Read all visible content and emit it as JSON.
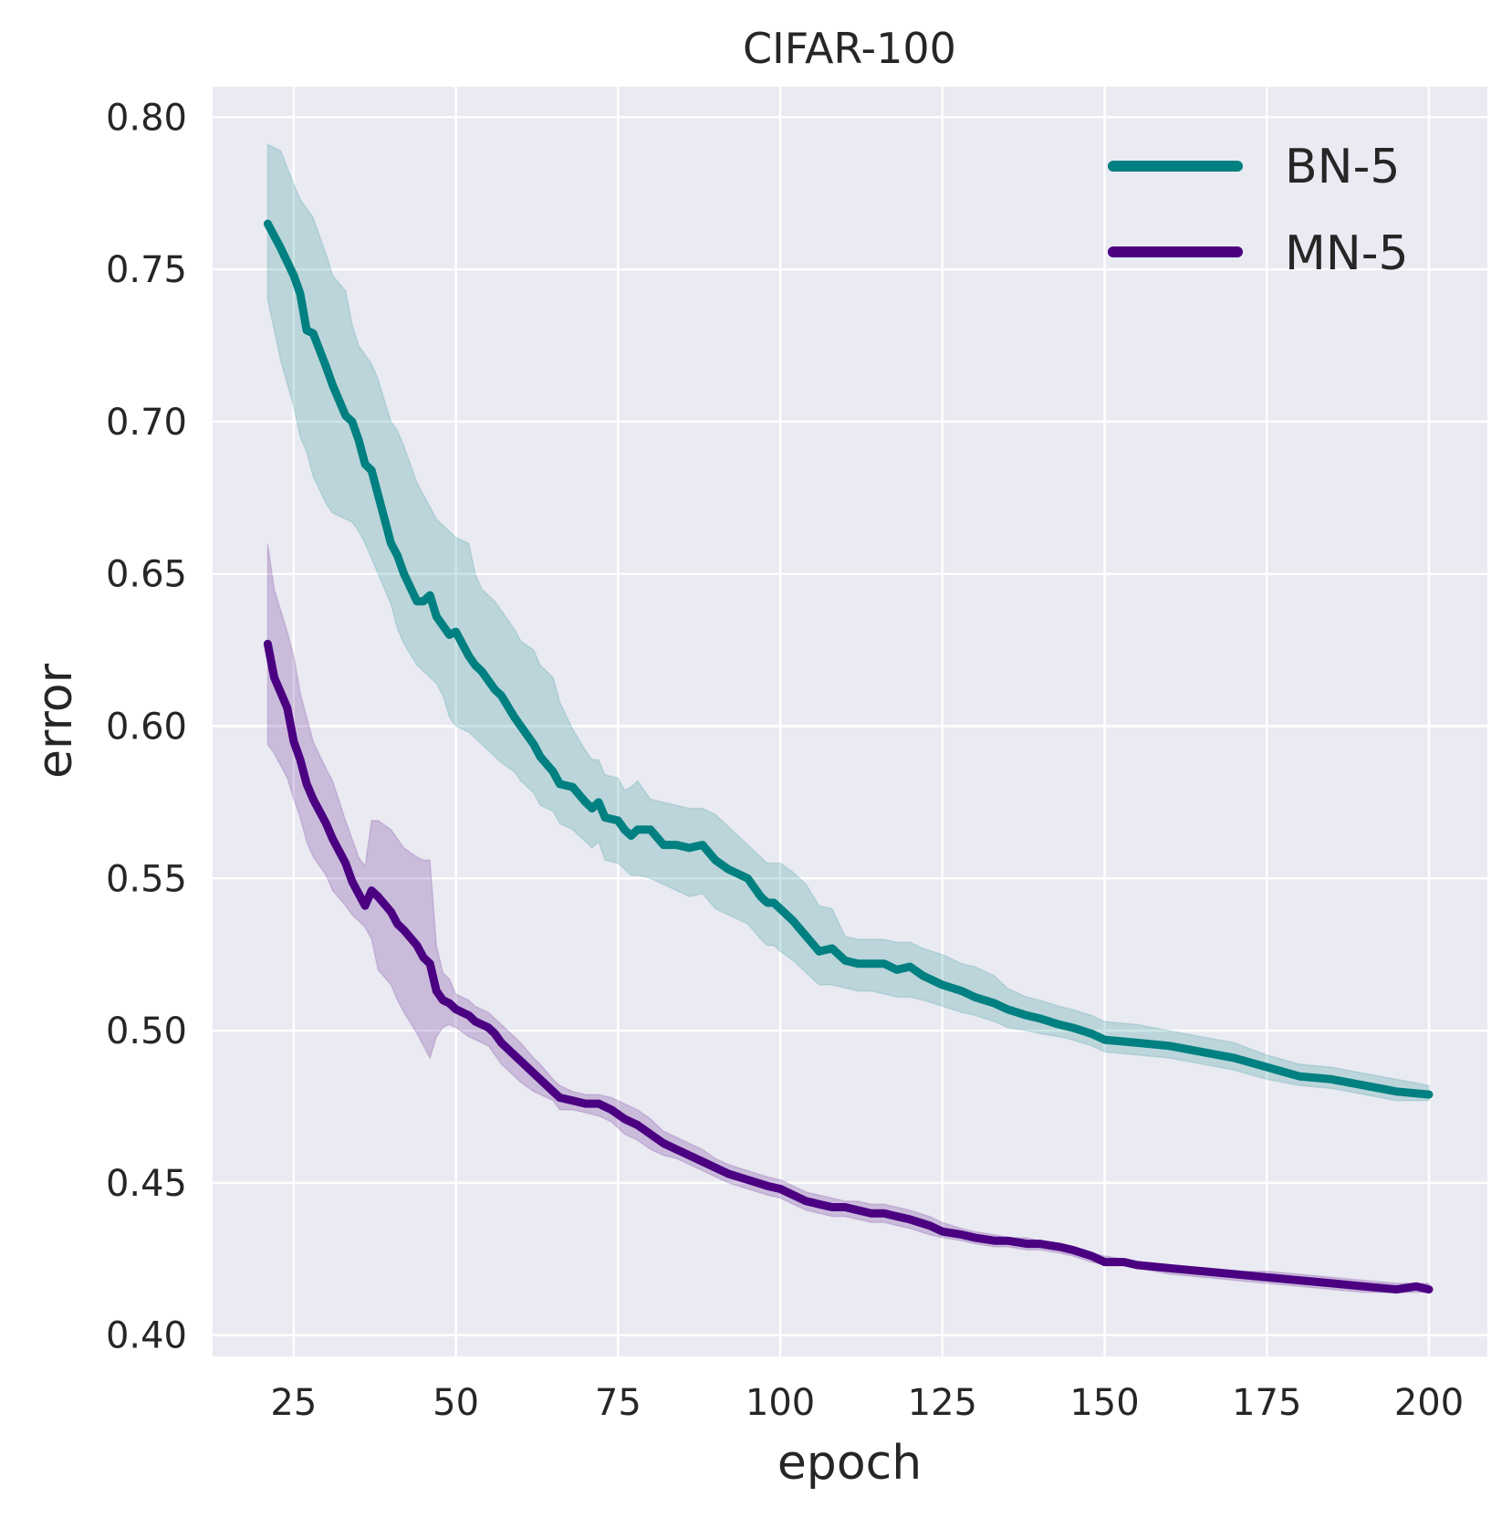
{
  "chart_data": {
    "type": "line",
    "title": "CIFAR-100",
    "xlabel": "epoch",
    "ylabel": "error",
    "xlim": [
      12.5,
      209
    ],
    "ylim": [
      0.393,
      0.81
    ],
    "xticks": [
      25,
      50,
      75,
      100,
      125,
      150,
      175,
      200
    ],
    "xtick_labels": [
      "25",
      "50",
      "75",
      "100",
      "125",
      "150",
      "175",
      "200"
    ],
    "yticks": [
      0.4,
      0.45,
      0.5,
      0.55,
      0.6,
      0.65,
      0.7,
      0.75,
      0.8
    ],
    "ytick_labels": [
      "0.40",
      "0.45",
      "0.50",
      "0.55",
      "0.60",
      "0.65",
      "0.70",
      "0.75",
      "0.80"
    ],
    "grid": true,
    "legend": "top-right",
    "series": [
      {
        "name": "BN-5",
        "color": "#008080",
        "x": [
          21,
          23,
          25,
          26,
          27,
          28,
          30,
          31,
          33,
          34,
          35,
          36,
          37,
          38,
          39,
          40,
          41,
          42,
          44,
          45,
          46,
          47,
          48,
          49,
          50,
          52,
          53,
          54,
          56,
          57,
          59,
          60,
          62,
          63,
          65,
          66,
          68,
          70,
          71,
          72,
          73,
          75,
          76,
          77,
          78,
          80,
          82,
          84,
          86,
          88,
          90,
          92,
          95,
          97,
          98,
          99,
          100,
          102,
          104,
          106,
          108,
          110,
          112,
          114,
          116,
          118,
          120,
          122,
          125,
          128,
          130,
          133,
          135,
          138,
          140,
          143,
          145,
          148,
          150,
          155,
          160,
          165,
          170,
          175,
          180,
          185,
          190,
          195,
          200
        ],
        "y": [
          0.765,
          0.757,
          0.748,
          0.742,
          0.73,
          0.729,
          0.718,
          0.712,
          0.702,
          0.7,
          0.694,
          0.686,
          0.684,
          0.676,
          0.668,
          0.66,
          0.656,
          0.65,
          0.641,
          0.641,
          0.643,
          0.636,
          0.633,
          0.63,
          0.631,
          0.623,
          0.62,
          0.618,
          0.612,
          0.61,
          0.603,
          0.6,
          0.594,
          0.59,
          0.585,
          0.581,
          0.58,
          0.575,
          0.573,
          0.575,
          0.57,
          0.569,
          0.566,
          0.564,
          0.566,
          0.566,
          0.561,
          0.561,
          0.56,
          0.561,
          0.556,
          0.553,
          0.55,
          0.544,
          0.542,
          0.542,
          0.54,
          0.536,
          0.531,
          0.526,
          0.527,
          0.523,
          0.522,
          0.522,
          0.522,
          0.52,
          0.521,
          0.518,
          0.515,
          0.513,
          0.511,
          0.509,
          0.507,
          0.505,
          0.504,
          0.502,
          0.501,
          0.499,
          0.497,
          0.496,
          0.495,
          0.493,
          0.491,
          0.488,
          0.485,
          0.484,
          0.482,
          0.48,
          0.479
        ],
        "lower": [
          0.74,
          0.72,
          0.705,
          0.695,
          0.69,
          0.682,
          0.673,
          0.67,
          0.668,
          0.667,
          0.664,
          0.66,
          0.655,
          0.65,
          0.645,
          0.64,
          0.632,
          0.627,
          0.62,
          0.618,
          0.616,
          0.614,
          0.61,
          0.603,
          0.6,
          0.598,
          0.596,
          0.594,
          0.59,
          0.588,
          0.585,
          0.582,
          0.578,
          0.574,
          0.572,
          0.568,
          0.566,
          0.562,
          0.56,
          0.562,
          0.556,
          0.555,
          0.553,
          0.551,
          0.551,
          0.55,
          0.548,
          0.546,
          0.544,
          0.545,
          0.54,
          0.538,
          0.535,
          0.53,
          0.528,
          0.528,
          0.526,
          0.523,
          0.519,
          0.515,
          0.515,
          0.514,
          0.513,
          0.513,
          0.512,
          0.511,
          0.511,
          0.51,
          0.508,
          0.506,
          0.505,
          0.503,
          0.501,
          0.5,
          0.499,
          0.498,
          0.497,
          0.495,
          0.493,
          0.492,
          0.491,
          0.489,
          0.487,
          0.484,
          0.482,
          0.481,
          0.479,
          0.477,
          0.477
        ],
        "upper": [
          0.791,
          0.789,
          0.778,
          0.773,
          0.77,
          0.767,
          0.755,
          0.748,
          0.743,
          0.732,
          0.725,
          0.722,
          0.719,
          0.714,
          0.707,
          0.7,
          0.697,
          0.692,
          0.68,
          0.676,
          0.672,
          0.668,
          0.666,
          0.664,
          0.662,
          0.66,
          0.65,
          0.645,
          0.641,
          0.638,
          0.632,
          0.628,
          0.625,
          0.62,
          0.616,
          0.608,
          0.599,
          0.592,
          0.589,
          0.589,
          0.584,
          0.583,
          0.579,
          0.58,
          0.582,
          0.576,
          0.575,
          0.574,
          0.573,
          0.573,
          0.571,
          0.567,
          0.561,
          0.557,
          0.555,
          0.555,
          0.555,
          0.552,
          0.548,
          0.541,
          0.54,
          0.531,
          0.53,
          0.53,
          0.53,
          0.529,
          0.529,
          0.527,
          0.525,
          0.522,
          0.521,
          0.518,
          0.514,
          0.511,
          0.51,
          0.508,
          0.507,
          0.505,
          0.503,
          0.502,
          0.5,
          0.498,
          0.496,
          0.492,
          0.489,
          0.488,
          0.486,
          0.484,
          0.482
        ]
      },
      {
        "name": "MN-5",
        "color": "#4B0082",
        "x": [
          21,
          22,
          24,
          25,
          26,
          27,
          28,
          30,
          31,
          33,
          34,
          35,
          36,
          37,
          38,
          40,
          41,
          42,
          44,
          45,
          46,
          47,
          48,
          49,
          50,
          52,
          53,
          55,
          56,
          57,
          59,
          60,
          62,
          63,
          65,
          66,
          68,
          70,
          72,
          74,
          76,
          78,
          80,
          82,
          84,
          86,
          88,
          90,
          92,
          95,
          98,
          100,
          102,
          104,
          106,
          108,
          110,
          112,
          114,
          116,
          118,
          120,
          123,
          125,
          128,
          130,
          133,
          135,
          138,
          140,
          143,
          145,
          148,
          150,
          153,
          155,
          160,
          165,
          170,
          175,
          180,
          185,
          190,
          195,
          198,
          200
        ],
        "y": [
          0.627,
          0.616,
          0.606,
          0.595,
          0.589,
          0.581,
          0.576,
          0.568,
          0.563,
          0.555,
          0.549,
          0.545,
          0.541,
          0.546,
          0.544,
          0.539,
          0.535,
          0.533,
          0.528,
          0.524,
          0.522,
          0.513,
          0.51,
          0.509,
          0.507,
          0.505,
          0.503,
          0.501,
          0.499,
          0.496,
          0.492,
          0.49,
          0.486,
          0.484,
          0.48,
          0.478,
          0.477,
          0.476,
          0.476,
          0.474,
          0.471,
          0.469,
          0.466,
          0.463,
          0.461,
          0.459,
          0.457,
          0.455,
          0.453,
          0.451,
          0.449,
          0.448,
          0.446,
          0.444,
          0.443,
          0.442,
          0.442,
          0.441,
          0.44,
          0.44,
          0.439,
          0.438,
          0.436,
          0.434,
          0.433,
          0.432,
          0.431,
          0.431,
          0.43,
          0.43,
          0.429,
          0.428,
          0.426,
          0.424,
          0.424,
          0.423,
          0.422,
          0.421,
          0.42,
          0.419,
          0.418,
          0.417,
          0.416,
          0.415,
          0.416,
          0.415
        ],
        "lower": [
          0.594,
          0.591,
          0.583,
          0.576,
          0.57,
          0.562,
          0.557,
          0.551,
          0.546,
          0.541,
          0.538,
          0.536,
          0.534,
          0.53,
          0.52,
          0.515,
          0.51,
          0.506,
          0.499,
          0.495,
          0.491,
          0.498,
          0.501,
          0.502,
          0.501,
          0.498,
          0.497,
          0.495,
          0.492,
          0.489,
          0.485,
          0.483,
          0.48,
          0.479,
          0.477,
          0.474,
          0.474,
          0.473,
          0.472,
          0.47,
          0.466,
          0.464,
          0.461,
          0.459,
          0.458,
          0.456,
          0.454,
          0.452,
          0.45,
          0.448,
          0.446,
          0.445,
          0.443,
          0.441,
          0.44,
          0.439,
          0.439,
          0.438,
          0.437,
          0.437,
          0.436,
          0.435,
          0.433,
          0.432,
          0.431,
          0.43,
          0.429,
          0.429,
          0.428,
          0.428,
          0.427,
          0.426,
          0.424,
          0.423,
          0.423,
          0.422,
          0.42,
          0.419,
          0.418,
          0.417,
          0.416,
          0.415,
          0.414,
          0.414,
          0.414,
          0.414
        ],
        "upper": [
          0.66,
          0.645,
          0.631,
          0.623,
          0.611,
          0.603,
          0.595,
          0.586,
          0.582,
          0.569,
          0.563,
          0.557,
          0.554,
          0.569,
          0.569,
          0.566,
          0.563,
          0.56,
          0.557,
          0.556,
          0.556,
          0.528,
          0.519,
          0.517,
          0.512,
          0.51,
          0.508,
          0.506,
          0.504,
          0.502,
          0.498,
          0.496,
          0.491,
          0.489,
          0.484,
          0.482,
          0.48,
          0.479,
          0.479,
          0.478,
          0.476,
          0.474,
          0.471,
          0.467,
          0.465,
          0.463,
          0.461,
          0.458,
          0.456,
          0.454,
          0.452,
          0.451,
          0.449,
          0.447,
          0.446,
          0.445,
          0.444,
          0.444,
          0.443,
          0.443,
          0.442,
          0.441,
          0.439,
          0.437,
          0.435,
          0.434,
          0.433,
          0.432,
          0.432,
          0.431,
          0.43,
          0.429,
          0.427,
          0.426,
          0.425,
          0.424,
          0.423,
          0.422,
          0.421,
          0.421,
          0.42,
          0.419,
          0.418,
          0.417,
          0.417,
          0.417
        ]
      }
    ]
  },
  "colors": {
    "plot_background": "#EAEAF2",
    "grid": "#FFFFFF",
    "text": "#262626"
  }
}
